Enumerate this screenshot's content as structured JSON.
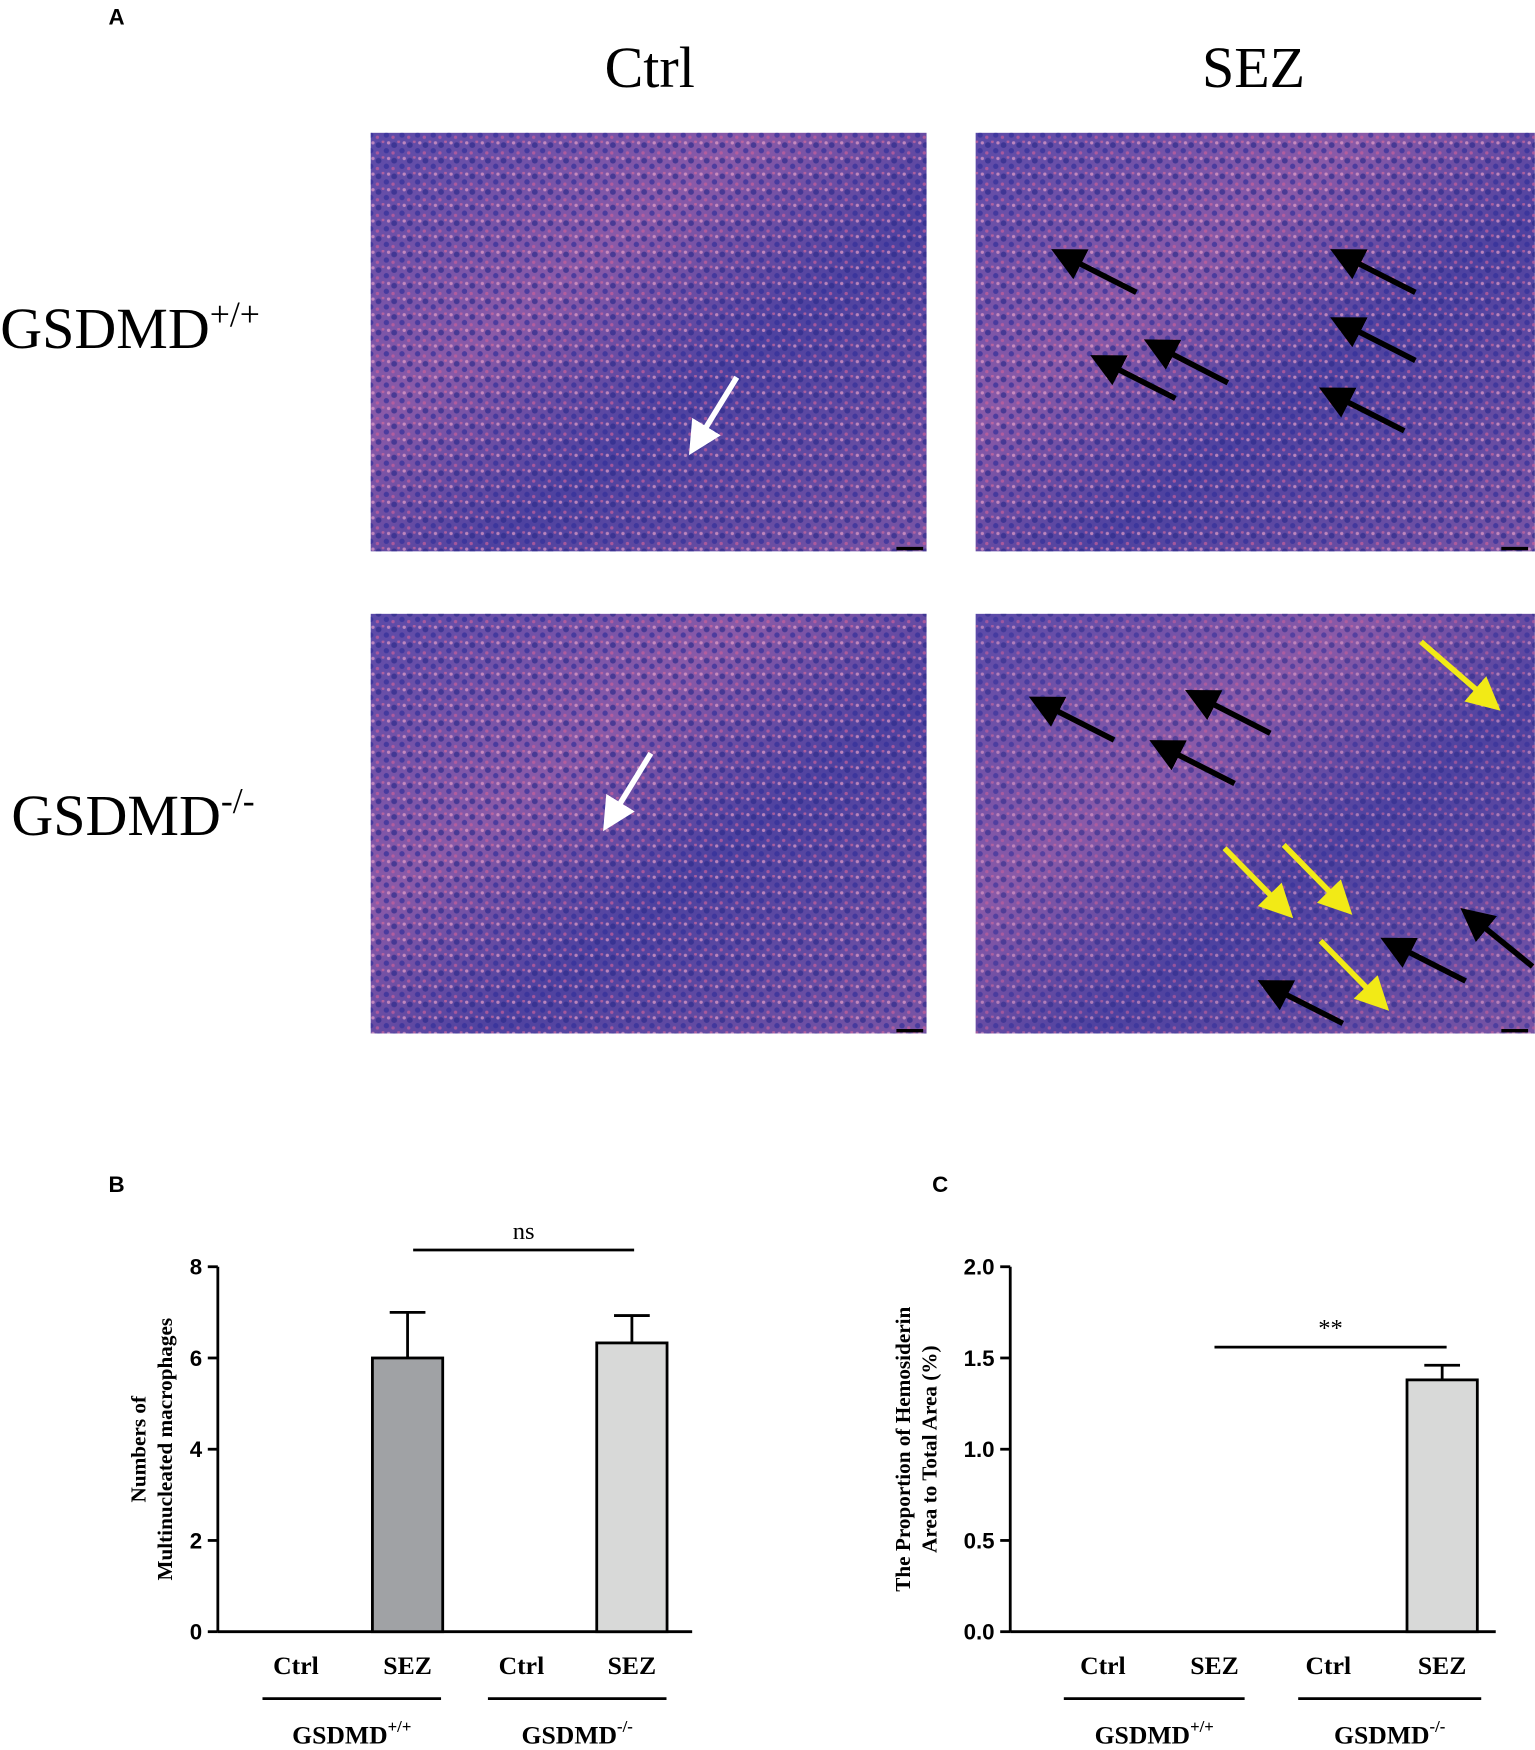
{
  "panel_a": {
    "label": "A",
    "columns": [
      "Ctrl",
      "SEZ"
    ],
    "rows": [
      {
        "name": "GSDMD",
        "sup": "+/+"
      },
      {
        "name": "GSDMD",
        "sup": "-/-"
      }
    ]
  },
  "chart_data": [
    {
      "type": "bar",
      "panel": "B",
      "ylabel": [
        "Numbers of",
        "Multinucleated macrophages"
      ],
      "categories": [
        "Ctrl",
        "SEZ",
        "Ctrl",
        "SEZ"
      ],
      "values": [
        0,
        6,
        0,
        6.33
      ],
      "errors": [
        null,
        1,
        null,
        0.6
      ],
      "colors": [
        "#a0a2a5",
        "#a0a2a5",
        "#d8d9d8",
        "#d8d9d8"
      ],
      "groups": [
        {
          "name": "GSDMD",
          "sup": "+/+"
        },
        {
          "name": "GSDMD",
          "sup": "-/-"
        }
      ],
      "significance": "ns",
      "ylim": [
        0,
        8
      ],
      "yticks": [
        0,
        2,
        4,
        6,
        8
      ]
    },
    {
      "type": "bar",
      "panel": "C",
      "ylabel": [
        "The Proportion of Hemosiderin",
        "Area to Total Area (%)"
      ],
      "categories": [
        "Ctrl",
        "SEZ",
        "Ctrl",
        "SEZ"
      ],
      "values": [
        0,
        0,
        0,
        1.38
      ],
      "errors": [
        null,
        null,
        null,
        0.08
      ],
      "colors": [
        "#a0a2a5",
        "#a0a2a5",
        "#d8d9d8",
        "#d8d9d8"
      ],
      "groups": [
        {
          "name": "GSDMD",
          "sup": "+/+"
        },
        {
          "name": "GSDMD",
          "sup": "-/-"
        }
      ],
      "significance": "**",
      "ylim": [
        0,
        2
      ],
      "yticks": [
        {
          "value": 0,
          "label": "0.0"
        },
        0.5,
        {
          "value": 1,
          "label": "1.0"
        },
        1.5,
        {
          "value": 2,
          "label": "2.0"
        }
      ]
    }
  ]
}
